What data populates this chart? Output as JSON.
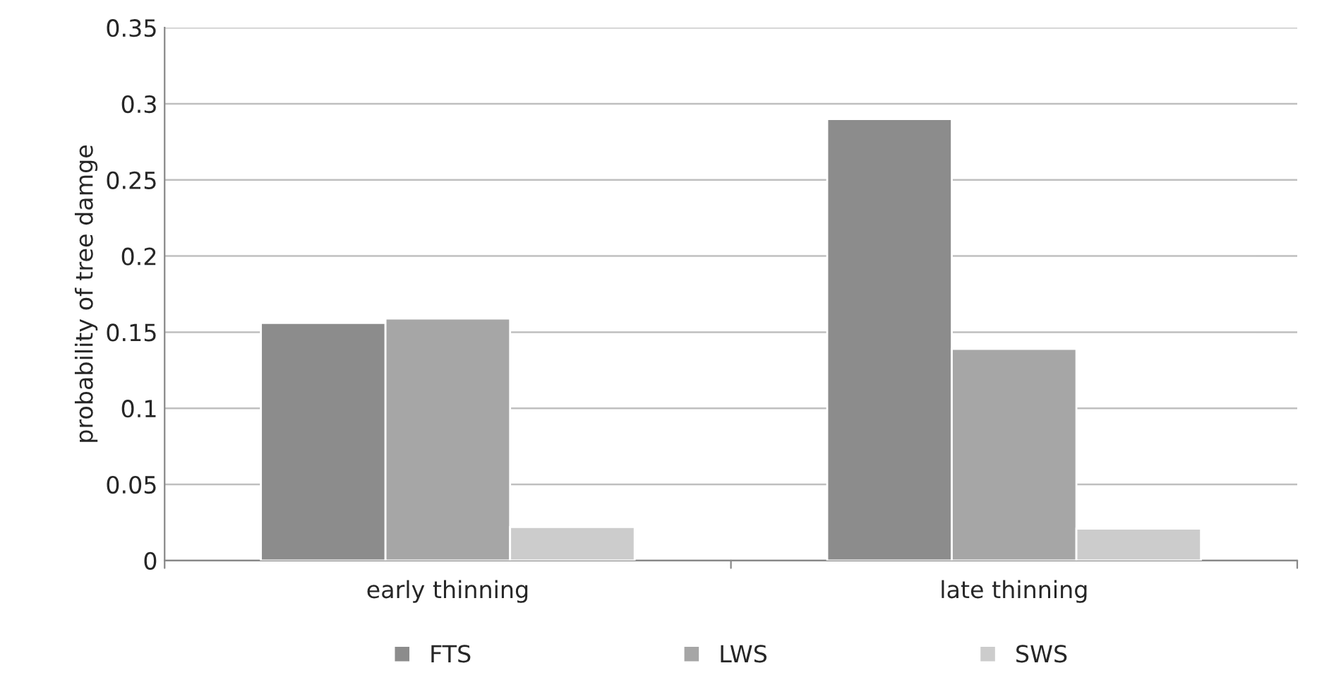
{
  "chart_data": {
    "type": "bar",
    "ylabel": "probability of tree damge",
    "categories": [
      "early thinning",
      "late thinning"
    ],
    "series": [
      {
        "name": "FTS",
        "color": "#8c8c8c",
        "values": [
          0.156,
          0.29
        ]
      },
      {
        "name": "LWS",
        "color": "#a6a6a6",
        "values": [
          0.159,
          0.139
        ]
      },
      {
        "name": "SWS",
        "color": "#cccccc",
        "values": [
          0.022,
          0.021
        ]
      }
    ],
    "ylim": [
      0,
      0.35
    ],
    "yticks": [
      0,
      0.05,
      0.1,
      0.15,
      0.2,
      0.25,
      0.3,
      0.35
    ],
    "grid": "y",
    "legend": "bottom"
  }
}
